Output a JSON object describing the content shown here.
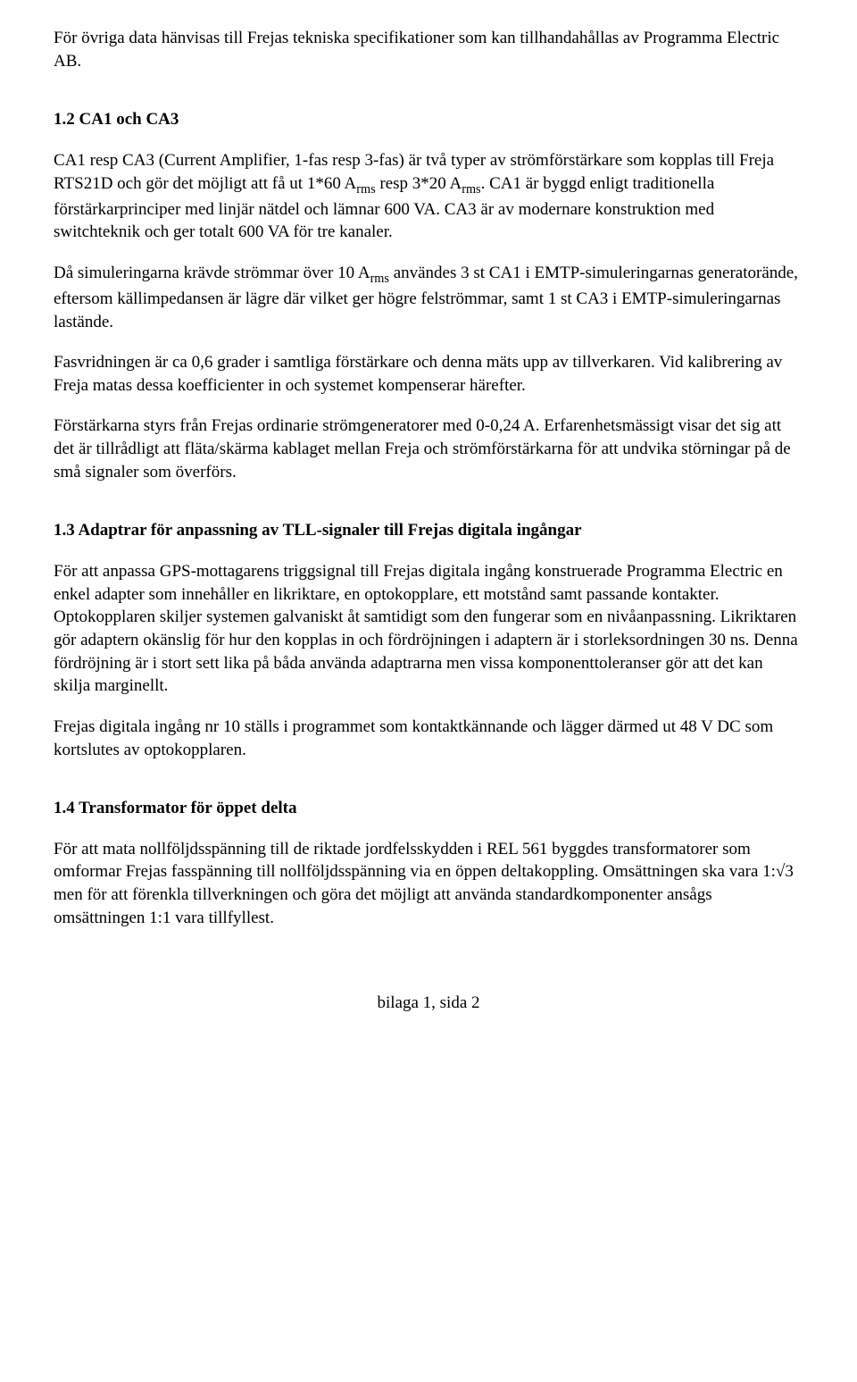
{
  "colors": {
    "text": "#000000",
    "background": "#ffffff"
  },
  "typography": {
    "font_family": "Times New Roman",
    "body_fontsize": 19,
    "line_height": 1.35
  },
  "para_intro": "För övriga data hänvisas till Frejas tekniska specifikationer som kan tillhandahållas av Programma Electric AB.",
  "heading_1_2": "1.2 CA1 och CA3",
  "para_1_2_a_prefix": "CA1 resp CA3 (Current Amplifier, 1-fas resp 3-fas) är två typer av strömförstärkare som kopplas till Freja RTS21D och gör det möjligt att få ut 1*60 A",
  "sub_rms": "rms",
  "para_1_2_a_mid": " resp 3*20 A",
  "para_1_2_a_suffix": ".",
  "para_1_2_b": "CA1 är byggd enligt traditionella förstärkarprinciper med linjär nätdel och lämnar 600 VA. CA3 är av modernare konstruktion med switchteknik och ger totalt 600 VA för tre kanaler.",
  "para_1_2_c_prefix": "Då simuleringarna krävde strömmar över 10 A",
  "para_1_2_c_suffix": " användes 3 st CA1 i EMTP-simuleringarnas generatorände, eftersom källimpedansen är lägre där vilket ger högre felströmmar, samt 1 st CA3 i EMTP-simuleringarnas lastände.",
  "para_1_2_d": "Fasvridningen är ca 0,6 grader i samtliga förstärkare och denna mäts upp av tillverkaren. Vid kalibrering av Freja matas dessa koefficienter in och systemet kompenserar härefter.",
  "para_1_2_e": "Förstärkarna styrs från Frejas ordinarie strömgeneratorer med 0-0,24 A. Erfarenhetsmässigt visar det sig att det är tillrådligt att fläta/skärma kablaget mellan Freja och strömförstärkarna för att undvika störningar på de små signaler som överförs.",
  "heading_1_3": "1.3 Adaptrar för anpassning av TLL-signaler till Frejas digitala ingångar",
  "para_1_3_a": "För att anpassa GPS-mottagarens triggsignal till Frejas digitala ingång konstruerade Programma Electric en enkel adapter som innehåller en likriktare, en optokopplare, ett motstånd samt passande kontakter.",
  "para_1_3_b": "Optokopplaren skiljer systemen galvaniskt åt samtidigt som den fungerar som en nivåanpassning. Likriktaren gör adaptern okänslig för hur den kopplas in och fördröjningen i adaptern är i storleksordningen 30 ns. Denna fördröjning är i stort sett lika på båda använda adaptrarna men vissa komponenttoleranser gör att det kan skilja marginellt.",
  "para_1_3_c": "Frejas digitala ingång nr 10 ställs i programmet som kontaktkännande och lägger därmed ut 48 V DC som kortslutes av optokopplaren.",
  "heading_1_4": "1.4 Transformator för öppet delta",
  "para_1_4_a": "För att mata nollföljdsspänning till de riktade jordfelsskydden i REL 561 byggdes transformatorer som omformar Frejas fasspänning till nollföljdsspänning via en öppen deltakoppling. Omsättningen ska vara 1:√3 men för att förenkla tillverkningen och göra det möjligt att använda standardkomponenter ansågs omsättningen 1:1 vara tillfyllest.",
  "footer": "bilaga 1, sida 2"
}
